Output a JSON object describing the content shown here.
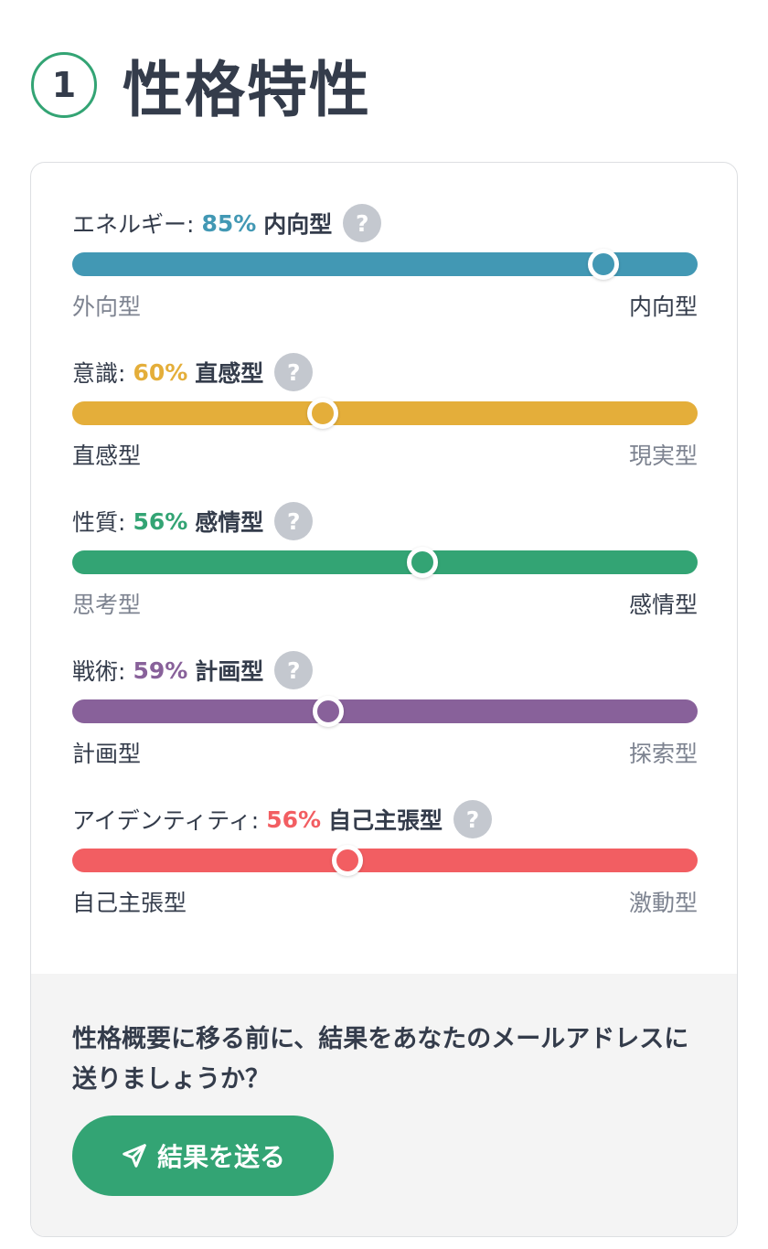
{
  "header": {
    "step_number": "1",
    "title": "性格特性"
  },
  "traits": [
    {
      "name": "エネルギー:",
      "percent": "85%",
      "type": "内向型",
      "left_pole": "外向型",
      "right_pole": "内向型",
      "position_percent": 85,
      "strong_pole": "right",
      "color": "#4298b4"
    },
    {
      "name": "意識:",
      "percent": "60%",
      "type": "直感型",
      "left_pole": "直感型",
      "right_pole": "現実型",
      "position_percent": 40,
      "strong_pole": "left",
      "color": "#e4ae3a"
    },
    {
      "name": "性質:",
      "percent": "56%",
      "type": "感情型",
      "left_pole": "思考型",
      "right_pole": "感情型",
      "position_percent": 56,
      "strong_pole": "right",
      "color": "#33a474"
    },
    {
      "name": "戦術:",
      "percent": "59%",
      "type": "計画型",
      "left_pole": "計画型",
      "right_pole": "探索型",
      "position_percent": 41,
      "strong_pole": "left",
      "color": "#88619a"
    },
    {
      "name": "アイデンティティ:",
      "percent": "56%",
      "type": "自己主張型",
      "left_pole": "自己主張型",
      "right_pole": "激動型",
      "position_percent": 44,
      "strong_pole": "left",
      "color": "#f25e62"
    }
  ],
  "email": {
    "prompt": "性格概要に移る前に、結果をあなたのメールアドレスに送りましょうか？",
    "button_label": "結果を送る",
    "button_icon": "paper-plane-icon"
  },
  "colors": {
    "accent": "#33a474",
    "text": "#343c4b",
    "muted": "#7d8390",
    "help_icon": "#c4c8cf"
  }
}
